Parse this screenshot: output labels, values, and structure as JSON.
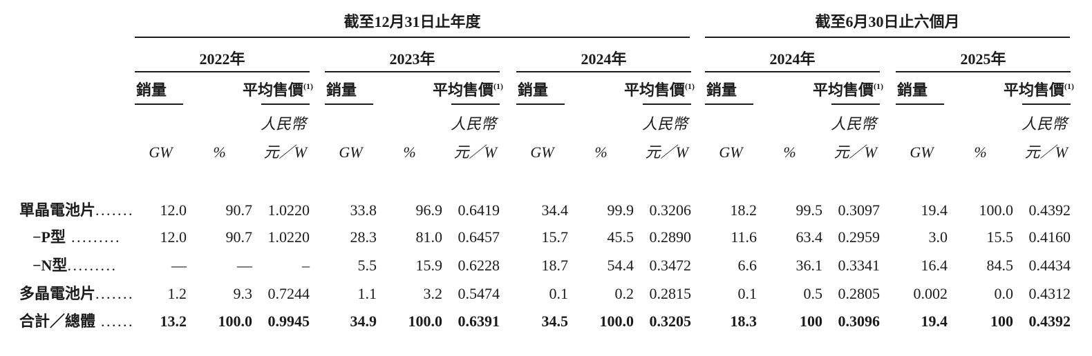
{
  "table": {
    "sections": [
      {
        "title": "截至12月31日止年度"
      },
      {
        "title": "截至6月30日止六個月"
      }
    ],
    "groups": [
      {
        "year": "2022年",
        "section": 0
      },
      {
        "year": "2023年",
        "section": 0
      },
      {
        "year": "2024年",
        "section": 0
      },
      {
        "year": "2024年",
        "section": 1
      },
      {
        "year": "2025年",
        "section": 1
      }
    ],
    "column_headers": {
      "volume": "銷量",
      "asp": "平均售價",
      "asp_footnote": "(1)",
      "currency": "人民幣",
      "unit_gw": "GW",
      "unit_pct": "%",
      "unit_price": "元／W"
    },
    "rows": [
      {
        "label": "單晶電池片",
        "leader": ".......",
        "indent": false,
        "bold": false,
        "values": [
          [
            "12.0",
            "90.7",
            "1.0220"
          ],
          [
            "33.8",
            "96.9",
            "0.6419"
          ],
          [
            "34.4",
            "99.9",
            "0.3206"
          ],
          [
            "18.2",
            "99.5",
            "0.3097"
          ],
          [
            "19.4",
            "100.0",
            "0.4392"
          ]
        ]
      },
      {
        "label": "−P型",
        "leader": " .........",
        "indent": true,
        "bold": false,
        "values": [
          [
            "12.0",
            "90.7",
            "1.0220"
          ],
          [
            "28.3",
            "81.0",
            "0.6457"
          ],
          [
            "15.7",
            "45.5",
            "0.2890"
          ],
          [
            "11.6",
            "63.4",
            "0.2959"
          ],
          [
            "3.0",
            "15.5",
            "0.4160"
          ]
        ]
      },
      {
        "label": "−N型",
        "leader": ".........",
        "indent": true,
        "bold": false,
        "values": [
          [
            "—",
            "—",
            "–"
          ],
          [
            "5.5",
            "15.9",
            "0.6228"
          ],
          [
            "18.7",
            "54.4",
            "0.3472"
          ],
          [
            "6.6",
            "36.1",
            "0.3341"
          ],
          [
            "16.4",
            "84.5",
            "0.4434"
          ]
        ]
      },
      {
        "label": "多晶電池片",
        "leader": ".......",
        "indent": false,
        "bold": false,
        "values": [
          [
            "1.2",
            "9.3",
            "0.7244"
          ],
          [
            "1.1",
            "3.2",
            "0.5474"
          ],
          [
            "0.1",
            "0.2",
            "0.2815"
          ],
          [
            "0.1",
            "0.5",
            "0.2805"
          ],
          [
            "0.002",
            "0.0",
            "0.4312"
          ]
        ]
      },
      {
        "label": "合計／總體",
        "leader": " ......",
        "indent": false,
        "bold": true,
        "values": [
          [
            "13.2",
            "100.0",
            "0.9945"
          ],
          [
            "34.9",
            "100.0",
            "0.6391"
          ],
          [
            "34.5",
            "100.0",
            "0.3205"
          ],
          [
            "18.3",
            "100",
            "0.3096"
          ],
          [
            "19.4",
            "100",
            "0.4392"
          ]
        ]
      }
    ]
  }
}
